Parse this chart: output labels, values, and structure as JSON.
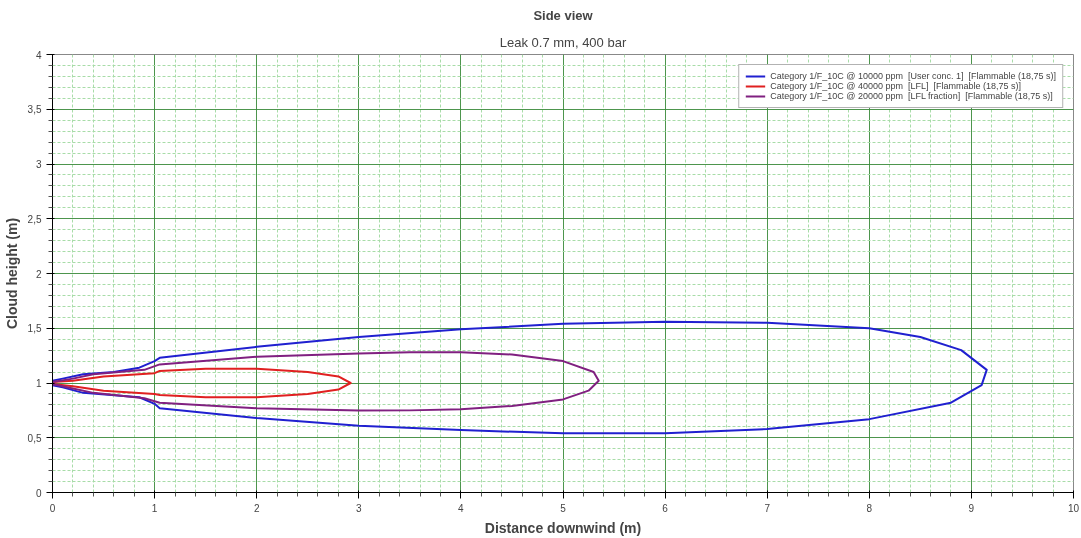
{
  "chart_data": {
    "type": "line",
    "title": "Side view",
    "subtitle": "Leak 0.7 mm, 400 bar",
    "xlabel": "Distance downwind (m)",
    "ylabel": "Cloud height (m)",
    "xlim": [
      0,
      10
    ],
    "ylim": [
      0,
      4
    ],
    "xticks": [
      0,
      {
        "value": 0.2,
        "label": null
      },
      {
        "value": 0.4,
        "label": null
      },
      {
        "value": 0.6,
        "label": null
      },
      {
        "value": 0.8,
        "label": null
      },
      1,
      {
        "value": 1.2,
        "label": null
      },
      {
        "value": 1.4,
        "label": null
      },
      {
        "value": 1.6,
        "label": null
      },
      {
        "value": 1.8,
        "label": null
      },
      2,
      {
        "value": 2.2,
        "label": null
      },
      {
        "value": 2.4,
        "label": null
      },
      {
        "value": 2.6,
        "label": null
      },
      {
        "value": 2.8,
        "label": null
      },
      3,
      {
        "value": 3.2,
        "label": null
      },
      {
        "value": 3.4,
        "label": null
      },
      {
        "value": 3.6,
        "label": null
      },
      {
        "value": 3.8,
        "label": null
      },
      4,
      {
        "value": 4.2,
        "label": null
      },
      {
        "value": 4.4,
        "label": null
      },
      {
        "value": 4.6,
        "label": null
      },
      {
        "value": 4.8,
        "label": null
      },
      5,
      {
        "value": 5.2,
        "label": null
      },
      {
        "value": 5.4,
        "label": null
      },
      {
        "value": 5.6,
        "label": null
      },
      {
        "value": 5.8,
        "label": null
      },
      6,
      {
        "value": 6.2,
        "label": null
      },
      {
        "value": 6.4,
        "label": null
      },
      {
        "value": 6.6,
        "label": null
      },
      {
        "value": 6.8,
        "label": null
      },
      7,
      {
        "value": 7.2,
        "label": null
      },
      {
        "value": 7.4,
        "label": null
      },
      {
        "value": 7.6,
        "label": null
      },
      {
        "value": 7.8,
        "label": null
      },
      8,
      {
        "value": 8.2,
        "label": null
      },
      {
        "value": 8.4,
        "label": null
      },
      {
        "value": 8.6,
        "label": null
      },
      {
        "value": 8.8,
        "label": null
      },
      9,
      {
        "value": 9.2,
        "label": null
      },
      {
        "value": 9.4,
        "label": null
      },
      {
        "value": 9.6,
        "label": null
      },
      {
        "value": 9.8,
        "label": null
      },
      10
    ],
    "yticks": [
      0,
      {
        "value": 0.1,
        "label": null
      },
      {
        "value": 0.2,
        "label": null
      },
      {
        "value": 0.3,
        "label": null
      },
      {
        "value": 0.4,
        "label": null
      },
      {
        "value": 0.5,
        "label": "0,5"
      },
      {
        "value": 0.6,
        "label": null
      },
      {
        "value": 0.7,
        "label": null
      },
      {
        "value": 0.8,
        "label": null
      },
      {
        "value": 0.9,
        "label": null
      },
      1,
      {
        "value": 1.1,
        "label": null
      },
      {
        "value": 1.2,
        "label": null
      },
      {
        "value": 1.3,
        "label": null
      },
      {
        "value": 1.4,
        "label": null
      },
      {
        "value": 1.5,
        "label": "1,5"
      },
      {
        "value": 1.6,
        "label": null
      },
      {
        "value": 1.7,
        "label": null
      },
      {
        "value": 1.8,
        "label": null
      },
      {
        "value": 1.9,
        "label": null
      },
      2,
      {
        "value": 2.1,
        "label": null
      },
      {
        "value": 2.2,
        "label": null
      },
      {
        "value": 2.3,
        "label": null
      },
      {
        "value": 2.4,
        "label": null
      },
      {
        "value": 2.5,
        "label": "2,5"
      },
      {
        "value": 2.6,
        "label": null
      },
      {
        "value": 2.7,
        "label": null
      },
      {
        "value": 2.8,
        "label": null
      },
      {
        "value": 2.9,
        "label": null
      },
      3,
      {
        "value": 3.1,
        "label": null
      },
      {
        "value": 3.2,
        "label": null
      },
      {
        "value": 3.3,
        "label": null
      },
      {
        "value": 3.4,
        "label": null
      },
      {
        "value": 3.5,
        "label": "3,5"
      },
      {
        "value": 3.6,
        "label": null
      },
      {
        "value": 3.7,
        "label": null
      },
      {
        "value": 3.8,
        "label": null
      },
      {
        "value": 3.9,
        "label": null
      },
      4
    ],
    "grid": true,
    "legend": "top right",
    "marker": "none",
    "line_style": "solid",
    "series": [
      {
        "name": "Category 1/F_10C @ 10000 ppm  [User conc. 1]  [Flammable (18,75 s)]",
        "color": "#2020d0",
        "x": [
          0,
          0.1,
          0.3,
          0.6,
          0.85,
          1.0,
          1.05,
          2,
          3,
          4,
          5,
          6,
          7,
          8,
          8.5,
          8.9,
          9.15,
          9.1,
          8.8,
          8,
          7,
          6,
          5,
          4,
          3,
          2,
          1.05,
          1.0,
          0.85,
          0.3,
          0.1,
          0
        ],
        "values": [
          1.02,
          1.04,
          1.08,
          1.1,
          1.14,
          1.2,
          1.23,
          1.33,
          1.42,
          1.49,
          1.54,
          1.56,
          1.55,
          1.5,
          1.42,
          1.3,
          1.12,
          0.98,
          0.82,
          0.67,
          0.58,
          0.54,
          0.54,
          0.57,
          0.61,
          0.68,
          0.77,
          0.81,
          0.87,
          0.91,
          0.96,
          0.98
        ]
      },
      {
        "name": "Category 1/F_10C @ 40000 ppm  [LFL]  [Flammable (18,75 s)]",
        "color": "#e02020",
        "x": [
          0,
          0.2,
          0.5,
          1.0,
          1.05,
          1.5,
          2,
          2.5,
          2.8,
          2.92,
          2.8,
          2.5,
          2,
          1.5,
          1.05,
          1.0,
          0.5,
          0.2,
          0
        ],
        "values": [
          1.01,
          1.02,
          1.06,
          1.09,
          1.11,
          1.13,
          1.13,
          1.1,
          1.06,
          1.0,
          0.94,
          0.9,
          0.87,
          0.87,
          0.89,
          0.9,
          0.93,
          0.97,
          0.99
        ]
      },
      {
        "name": "Category 1/F_10C @ 20000 ppm  [LFL fraction]  [Flammable (18,75 s)]",
        "color": "#802080",
        "x": [
          0,
          0.2,
          0.4,
          0.9,
          1.05,
          2,
          3,
          3.5,
          4,
          4.5,
          5,
          5.3,
          5.35,
          5.25,
          5,
          4.5,
          4,
          3.5,
          3,
          2,
          1.05,
          0.9,
          0.4,
          0.2,
          0
        ],
        "values": [
          1.01,
          1.04,
          1.08,
          1.12,
          1.17,
          1.24,
          1.27,
          1.28,
          1.28,
          1.26,
          1.2,
          1.1,
          1.02,
          0.93,
          0.85,
          0.79,
          0.76,
          0.75,
          0.75,
          0.77,
          0.82,
          0.86,
          0.91,
          0.95,
          0.99
        ]
      }
    ]
  }
}
